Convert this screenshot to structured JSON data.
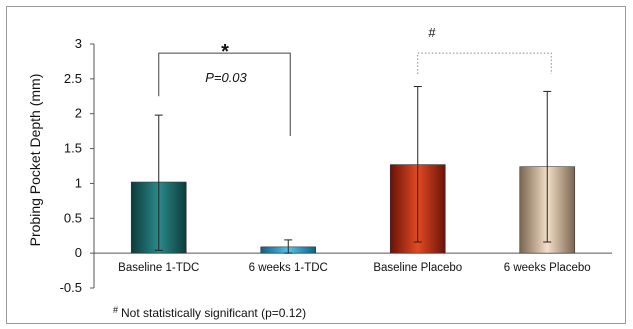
{
  "chart_data": {
    "type": "bar",
    "categories": [
      "Baseline 1-TDC",
      "6 weeks 1-TDC",
      "Baseline Placebo",
      "6 weeks Placebo"
    ],
    "values": [
      1.02,
      0.09,
      1.27,
      1.24
    ],
    "error": [
      {
        "low": 0.04,
        "high": 1.98
      },
      {
        "low": 0.0,
        "high": 0.19
      },
      {
        "low": 0.16,
        "high": 2.39
      },
      {
        "low": 0.16,
        "high": 2.32
      }
    ],
    "ylabel": "Probing Pocket Depth (mm)",
    "ylim": [
      -0.5,
      3
    ],
    "yticks": [
      "3",
      "2.5",
      "2",
      "1.5",
      "1",
      "0.5",
      "0",
      "-0.5"
    ],
    "ytick_values": [
      3,
      2.5,
      2,
      1.5,
      1,
      0.5,
      0,
      -0.5
    ],
    "colors": [
      "#1f6f6f",
      "#2aa3cf",
      "#c0341a",
      "#cdb59a"
    ],
    "annotations": {
      "sig_star": "*",
      "p_value": "P=0.03",
      "hash": "#",
      "footnote_mark": "#",
      "footnote_text": "Not statistically significant (p=0.12)"
    }
  }
}
